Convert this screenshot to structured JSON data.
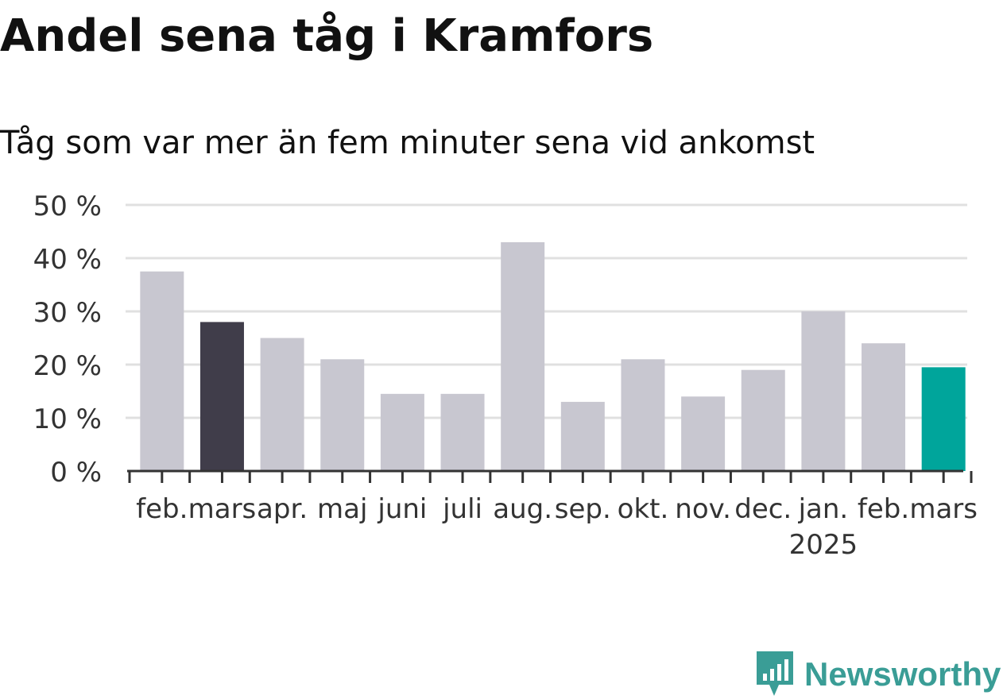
{
  "title": "Andel sena tåg i Kramfors",
  "subtitle": "Tåg som var mer än fem minuter sena vid ankomst",
  "brand": {
    "name": "Newsworthy"
  },
  "colors": {
    "default_bar": "#c8c7d0",
    "prev_year_bar": "#403d4a",
    "current_bar": "#00a59b",
    "grid": "#e0e0e0",
    "axis": "#333333",
    "brand": "#3a9d96"
  },
  "chart_data": {
    "type": "bar",
    "title": "Andel sena tåg i Kramfors",
    "subtitle": "Tåg som var mer än fem minuter sena vid ankomst",
    "categories": [
      "feb.",
      "mars",
      "apr.",
      "maj",
      "juni",
      "juli",
      "aug.",
      "sep.",
      "okt.",
      "nov.",
      "dec.",
      "jan.",
      "feb.",
      "mars"
    ],
    "year_label": {
      "category_index": 11,
      "text": "2025"
    },
    "values": [
      37.5,
      28,
      25,
      21,
      14.5,
      14.5,
      43,
      13,
      21,
      14,
      19,
      30,
      24,
      19.5
    ],
    "highlight": {
      "previous_year_index": 1,
      "current_index": 13
    },
    "ylim": [
      0,
      50
    ],
    "yticks": [
      0,
      10,
      20,
      30,
      40,
      50
    ],
    "ytick_labels": [
      "0 %",
      "10 %",
      "20 %",
      "30 %",
      "40 %",
      "50 %"
    ],
    "xlabel": "",
    "ylabel": "",
    "grid": true,
    "legend": "none"
  }
}
